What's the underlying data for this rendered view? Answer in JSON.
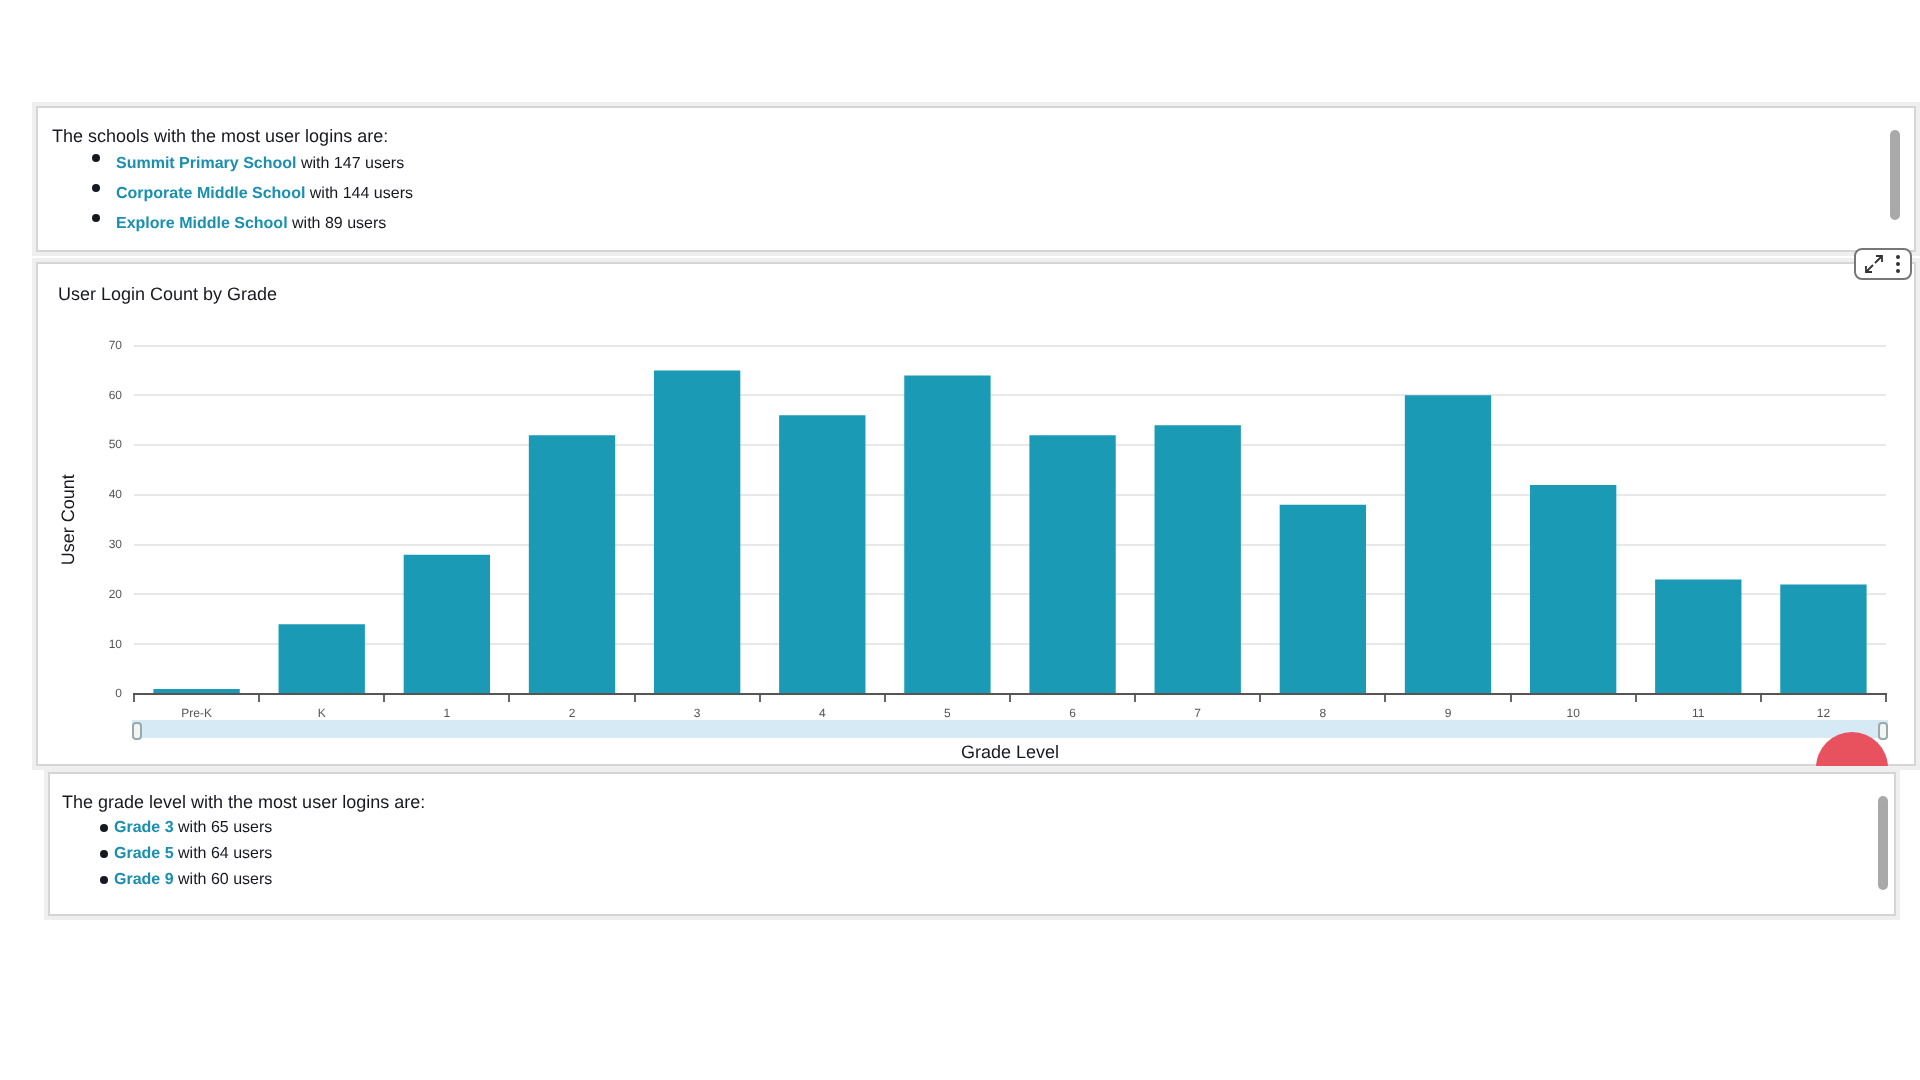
{
  "chart_data": [
    {
      "type": "other",
      "annotations": [
        "The schools with the most user logins are:",
        "Summit Primary School",
        "with 147 users",
        "Corporate Middle School",
        "with 144 users",
        "Explore Middle School",
        "with 89 users"
      ]
    },
    {
      "type": "bar",
      "title": "User Login Count by Grade",
      "xlabel": "Grade Level",
      "ylabel": "User Count",
      "categories": [
        "Pre-K",
        "K",
        "1",
        "2",
        "3",
        "4",
        "5",
        "6",
        "7",
        "8",
        "9",
        "10",
        "11",
        "12"
      ],
      "values": [
        1,
        14,
        28,
        52,
        65,
        56,
        64,
        52,
        54,
        38,
        60,
        42,
        23,
        22
      ],
      "color": "#1b9ab6",
      "ylim": [
        0,
        70
      ],
      "yticks": [
        0,
        10,
        20,
        30,
        40,
        50,
        60,
        70
      ],
      "grid": "y"
    },
    {
      "type": "other",
      "annotations": [
        "The grade level with the most user logins are:",
        "Grade 3",
        "with 65 users",
        "Grade 5",
        "with 64 users",
        "Grade 9",
        "with 60 users"
      ]
    }
  ]
}
